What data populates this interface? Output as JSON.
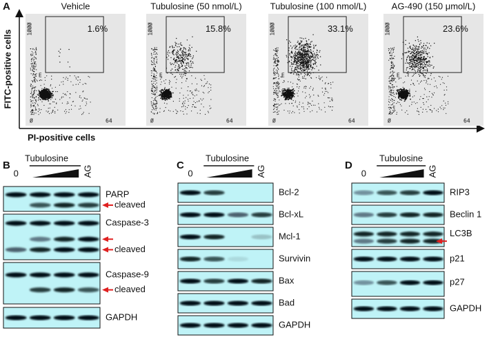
{
  "panel_a": {
    "label": "A",
    "y_axis_label": "FITC-positive cells",
    "x_axis_label": "PI-positive cells",
    "plots": [
      {
        "title": "Vehicle",
        "percent": "1.6%",
        "gate": "E",
        "y_tick": "1ØØØ",
        "x_ticks": [
          "Ø",
          "64"
        ]
      },
      {
        "title": "Tubulosine (50 nmol/L)",
        "percent": "15.8%",
        "gate": "E",
        "y_tick": "1ØØØ",
        "x_ticks": [
          "Ø",
          "64"
        ]
      },
      {
        "title": "Tubulosine (100 nmol/L)",
        "percent": "33.1%",
        "gate": "E",
        "y_tick": "1ØØØ",
        "x_ticks": [
          "Ø",
          "64"
        ]
      },
      {
        "title": "AG-490 (150 μmol/L)",
        "percent": "23.6%",
        "gate": "E",
        "y_tick": "1ØØØ",
        "x_ticks": [
          "Ø",
          "64"
        ]
      }
    ]
  },
  "panel_b": {
    "label": "B",
    "treatment": "Tubulosine",
    "lanes": [
      "0",
      "AG"
    ],
    "blots": [
      {
        "name": "PARP",
        "sub": "cleaved"
      },
      {
        "name": "Caspase-3",
        "sub": "cleaved"
      },
      {
        "name": "Caspase-9",
        "sub": "cleaved"
      },
      {
        "name": "GAPDH"
      }
    ]
  },
  "panel_c": {
    "label": "C",
    "treatment": "Tubulosine",
    "lanes": [
      "0",
      "AG"
    ],
    "blots": [
      {
        "name": "Bcl-2"
      },
      {
        "name": "Bcl-xL"
      },
      {
        "name": "Mcl-1"
      },
      {
        "name": "Survivin"
      },
      {
        "name": "Bax"
      },
      {
        "name": "Bad"
      },
      {
        "name": "GAPDH"
      }
    ]
  },
  "panel_d": {
    "label": "D",
    "treatment": "Tubulosine",
    "lanes": [
      "0",
      "AG"
    ],
    "blots": [
      {
        "name": "RIP3"
      },
      {
        "name": "Beclin 1"
      },
      {
        "name": "LC3B"
      },
      {
        "name": "p21"
      },
      {
        "name": "p27"
      },
      {
        "name": "GAPDH"
      }
    ]
  }
}
